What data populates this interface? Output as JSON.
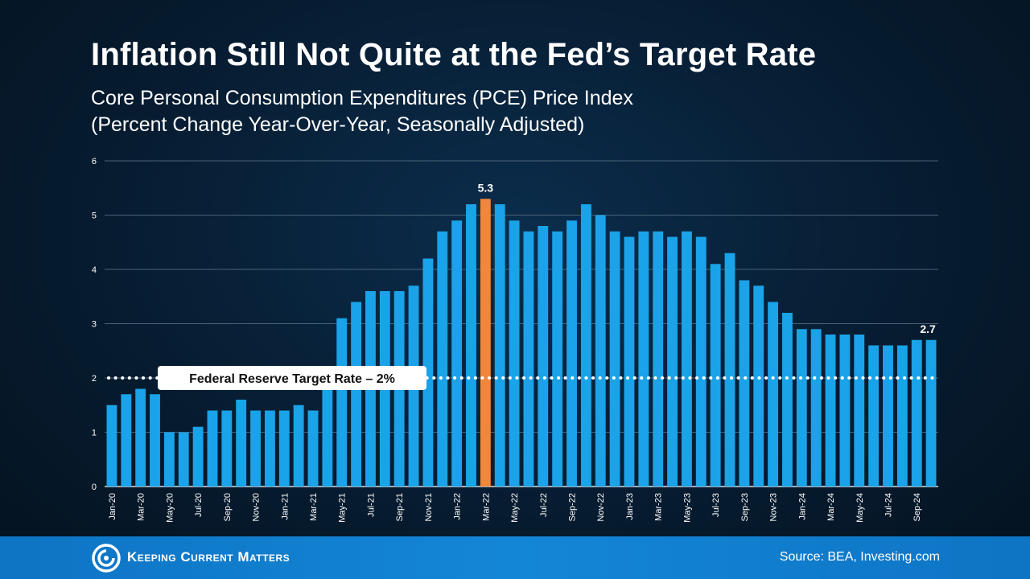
{
  "header": {
    "title": "Inflation Still Not Quite at the Fed’s Target Rate",
    "subtitle_line1": "Core Personal Consumption Expenditures (PCE) Price Index",
    "subtitle_line2": "(Percent Change Year-Over-Year, Seasonally Adjusted)"
  },
  "footer": {
    "logo_text": "Keeping Current Matters",
    "source": "Source: BEA, Investing.com"
  },
  "colors": {
    "bar": "#1aa3e8",
    "highlight_bar": "#f0873a",
    "background": "#071c31",
    "footer": "#1486d6"
  },
  "chart_data": {
    "type": "bar",
    "title": "Inflation Still Not Quite at the Fed’s Target Rate",
    "ylim": [
      0,
      6
    ],
    "yticks": [
      0,
      1,
      2,
      3,
      4,
      5,
      6
    ],
    "grid": true,
    "categories": [
      "Jan-20",
      "Feb-20",
      "Mar-20",
      "Apr-20",
      "May-20",
      "Jun-20",
      "Jul-20",
      "Aug-20",
      "Sep-20",
      "Oct-20",
      "Nov-20",
      "Dec-20",
      "Jan-21",
      "Feb-21",
      "Mar-21",
      "Apr-21",
      "May-21",
      "Jun-21",
      "Jul-21",
      "Aug-21",
      "Sep-21",
      "Oct-21",
      "Nov-21",
      "Dec-21",
      "Jan-22",
      "Feb-22",
      "Mar-22",
      "Apr-22",
      "May-22",
      "Jun-22",
      "Jul-22",
      "Aug-22",
      "Sep-22",
      "Oct-22",
      "Nov-22",
      "Dec-22",
      "Jan-23",
      "Feb-23",
      "Mar-23",
      "Apr-23",
      "May-23",
      "Jun-23",
      "Jul-23",
      "Aug-23",
      "Sep-23",
      "Oct-23",
      "Nov-23",
      "Dec-23",
      "Jan-24",
      "Feb-24",
      "Mar-24",
      "Apr-24",
      "May-24",
      "Jun-24",
      "Jul-24",
      "Aug-24",
      "Sep-24",
      "Oct-24"
    ],
    "values": [
      1.5,
      1.7,
      1.8,
      1.7,
      1.0,
      1.0,
      1.1,
      1.4,
      1.4,
      1.6,
      1.4,
      1.4,
      1.4,
      1.5,
      1.4,
      1.8,
      3.1,
      3.4,
      3.6,
      3.6,
      3.6,
      3.7,
      4.2,
      4.7,
      4.9,
      5.2,
      5.3,
      5.2,
      4.9,
      4.7,
      4.8,
      4.7,
      4.9,
      5.2,
      5.0,
      4.7,
      4.6,
      4.7,
      4.7,
      4.6,
      4.7,
      4.6,
      4.1,
      4.3,
      3.8,
      3.7,
      3.4,
      3.2,
      2.9,
      2.9,
      2.8,
      2.8,
      2.8,
      2.6,
      2.6,
      2.6,
      2.7,
      2.7
    ],
    "highlight_index": 26,
    "data_labels": [
      {
        "index": 26,
        "text": "5.3"
      },
      {
        "index": 57,
        "text": "2.7"
      }
    ],
    "reference_line": {
      "value": 2,
      "label": "Federal Reserve Target Rate – 2%"
    }
  }
}
